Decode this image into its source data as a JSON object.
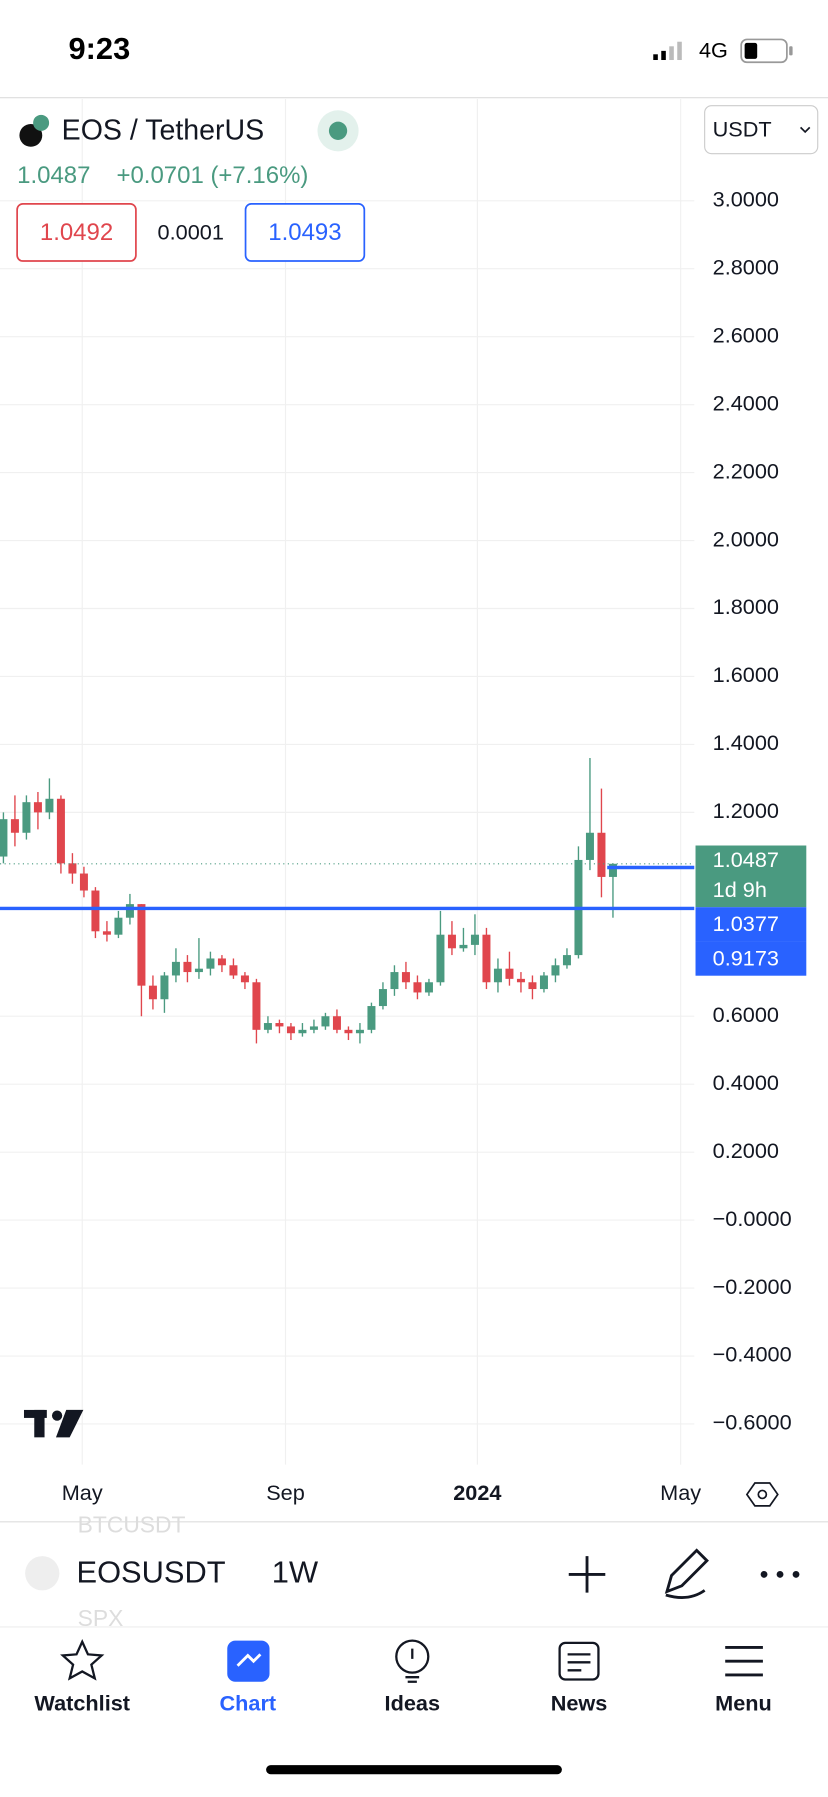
{
  "status": {
    "time": "9:23",
    "network": "4G"
  },
  "header": {
    "symbol_title": "EOS / TetherUS",
    "last": "1.0487",
    "change": "+0.0701 (+7.16%)",
    "bid": "1.0492",
    "spread": "0.0001",
    "ask": "1.0493",
    "currency": "USDT"
  },
  "chart_data": {
    "type": "candlestick",
    "candles": [
      [
        1.07,
        1.2,
        1.05,
        1.18
      ],
      [
        1.18,
        1.25,
        1.1,
        1.14
      ],
      [
        1.14,
        1.25,
        1.12,
        1.23
      ],
      [
        1.23,
        1.26,
        1.15,
        1.2
      ],
      [
        1.2,
        1.3,
        1.18,
        1.24
      ],
      [
        1.24,
        1.25,
        1.02,
        1.05
      ],
      [
        1.05,
        1.08,
        0.99,
        1.02
      ],
      [
        1.02,
        1.04,
        0.95,
        0.97
      ],
      [
        0.97,
        0.98,
        0.83,
        0.85
      ],
      [
        0.85,
        0.88,
        0.82,
        0.84
      ],
      [
        0.84,
        0.91,
        0.83,
        0.89
      ],
      [
        0.89,
        0.96,
        0.87,
        0.93
      ],
      [
        0.93,
        0.93,
        0.6,
        0.69
      ],
      [
        0.69,
        0.72,
        0.62,
        0.65
      ],
      [
        0.65,
        0.73,
        0.61,
        0.72
      ],
      [
        0.72,
        0.8,
        0.7,
        0.76
      ],
      [
        0.76,
        0.78,
        0.7,
        0.73
      ],
      [
        0.73,
        0.83,
        0.71,
        0.74
      ],
      [
        0.74,
        0.79,
        0.72,
        0.77
      ],
      [
        0.77,
        0.78,
        0.73,
        0.75
      ],
      [
        0.75,
        0.77,
        0.71,
        0.72
      ],
      [
        0.72,
        0.73,
        0.68,
        0.7
      ],
      [
        0.7,
        0.71,
        0.52,
        0.56
      ],
      [
        0.56,
        0.6,
        0.55,
        0.58
      ],
      [
        0.58,
        0.59,
        0.55,
        0.57
      ],
      [
        0.57,
        0.58,
        0.53,
        0.55
      ],
      [
        0.55,
        0.58,
        0.54,
        0.56
      ],
      [
        0.56,
        0.59,
        0.55,
        0.57
      ],
      [
        0.57,
        0.61,
        0.56,
        0.6
      ],
      [
        0.6,
        0.62,
        0.55,
        0.56
      ],
      [
        0.56,
        0.57,
        0.53,
        0.55
      ],
      [
        0.55,
        0.58,
        0.52,
        0.56
      ],
      [
        0.56,
        0.64,
        0.55,
        0.63
      ],
      [
        0.63,
        0.7,
        0.62,
        0.68
      ],
      [
        0.68,
        0.75,
        0.66,
        0.73
      ],
      [
        0.73,
        0.76,
        0.68,
        0.7
      ],
      [
        0.7,
        0.72,
        0.65,
        0.67
      ],
      [
        0.67,
        0.71,
        0.66,
        0.7
      ],
      [
        0.7,
        0.91,
        0.69,
        0.84
      ],
      [
        0.84,
        0.88,
        0.78,
        0.8
      ],
      [
        0.8,
        0.86,
        0.79,
        0.81
      ],
      [
        0.81,
        0.9,
        0.78,
        0.84
      ],
      [
        0.84,
        0.86,
        0.68,
        0.7
      ],
      [
        0.7,
        0.77,
        0.67,
        0.74
      ],
      [
        0.74,
        0.79,
        0.69,
        0.71
      ],
      [
        0.71,
        0.73,
        0.67,
        0.7
      ],
      [
        0.7,
        0.72,
        0.65,
        0.68
      ],
      [
        0.68,
        0.73,
        0.67,
        0.72
      ],
      [
        0.72,
        0.77,
        0.7,
        0.75
      ],
      [
        0.75,
        0.8,
        0.74,
        0.78
      ],
      [
        0.78,
        1.1,
        0.77,
        1.06
      ],
      [
        1.06,
        1.36,
        1.03,
        1.14
      ],
      [
        1.14,
        1.27,
        0.95,
        1.01
      ],
      [
        1.01,
        1.05,
        0.89,
        1.0487
      ]
    ],
    "up_color": "#4a9a80",
    "down_color": "#e0464d",
    "ylim": [
      -0.72,
      3.3
    ],
    "yticks": [
      {
        "value": 3,
        "label": "3.0000"
      },
      {
        "value": 2.8,
        "label": "2.8000"
      },
      {
        "value": 2.6,
        "label": "2.6000"
      },
      {
        "value": 2.4,
        "label": "2.4000"
      },
      {
        "value": 2.2,
        "label": "2.2000"
      },
      {
        "value": 2,
        "label": "2.0000"
      },
      {
        "value": 1.8,
        "label": "1.8000"
      },
      {
        "value": 1.6,
        "label": "1.6000"
      },
      {
        "value": 1.4,
        "label": "1.4000"
      },
      {
        "value": 1.2,
        "label": "1.2000"
      },
      {
        "value": 0.6,
        "label": "0.6000"
      },
      {
        "value": 0.4,
        "label": "0.4000"
      },
      {
        "value": 0.2,
        "label": "0.2000"
      },
      {
        "value": 0,
        "label": "−0.0000"
      },
      {
        "value": -0.2,
        "label": "−0.2000"
      },
      {
        "value": -0.4,
        "label": "−0.4000"
      },
      {
        "value": -0.6,
        "label": "−0.6000"
      }
    ],
    "x_labels": [
      "May",
      "Sep",
      "2024",
      "May"
    ],
    "price_line": {
      "value": 1.0487,
      "label": "1.0487",
      "countdown": "1d 9h"
    },
    "levels": [
      {
        "value": 1.0377,
        "label": "1.0377"
      },
      {
        "value": 0.9173,
        "label": "0.9173"
      }
    ],
    "grid": true
  },
  "toolbar": {
    "symbol": "EOSUSDT",
    "interval": "1W",
    "faded_above": "BTCUSDT",
    "faded_below": "SPX"
  },
  "tabs": [
    "Watchlist",
    "Chart",
    "Ideas",
    "News",
    "Menu"
  ]
}
